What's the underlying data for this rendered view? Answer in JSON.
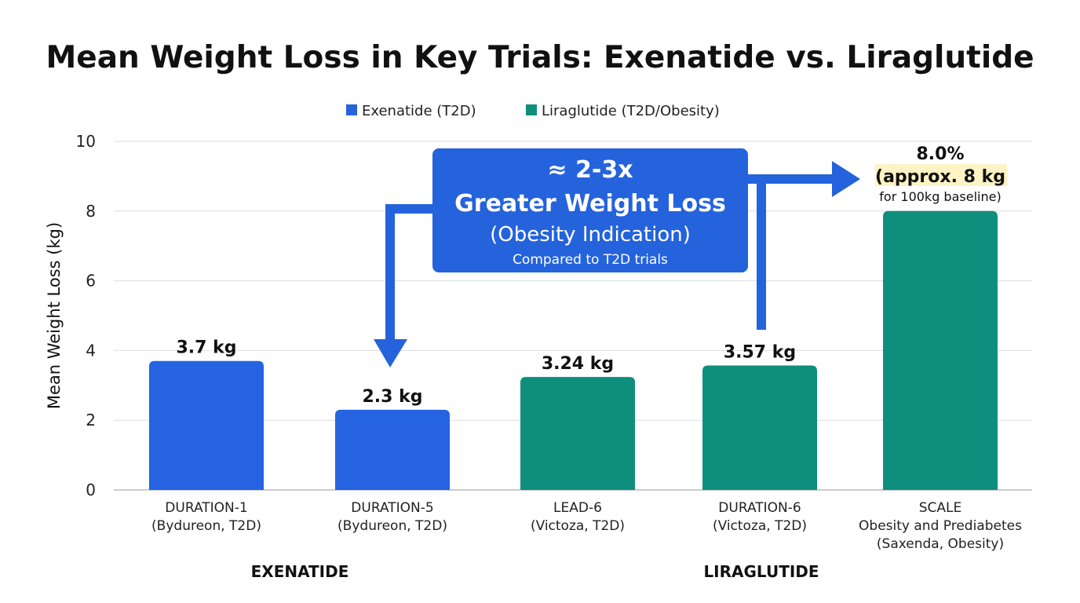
{
  "chart_data": {
    "type": "bar",
    "title": "Mean Weight Loss in Key Trials: Exenatide vs. Liraglutide",
    "ylabel": "Mean Weight Loss (kg)",
    "xlabel": "",
    "ylim": [
      0,
      10
    ],
    "yticks": [
      0,
      2,
      4,
      6,
      8,
      10
    ],
    "grid": true,
    "legend_position": "top-center",
    "legend": [
      {
        "name": "Exenatide (T2D)",
        "color": "#2563e0"
      },
      {
        "name": "Liraglutide (T2D/Obesity)",
        "color": "#0e8f7d"
      }
    ],
    "categories": [
      {
        "lines": [
          "DURATION-1",
          "(Bydureon, T2D)"
        ],
        "value": 3.7,
        "label": "3.7 kg",
        "series": 0
      },
      {
        "lines": [
          "DURATION-5",
          "(Bydureon, T2D)"
        ],
        "value": 2.3,
        "label": "2.3 kg",
        "series": 0
      },
      {
        "lines": [
          "LEAD-6",
          "(Victoza, T2D)"
        ],
        "value": 3.24,
        "label": "3.24 kg",
        "series": 1
      },
      {
        "lines": [
          "DURATION-6",
          "(Victoza, T2D)"
        ],
        "value": 3.57,
        "label": "3.57 kg",
        "series": 1
      },
      {
        "lines": [
          "SCALE",
          "Obesity and Prediabetes",
          "(Saxenda, Obesity)"
        ],
        "value": 8.0,
        "label": "",
        "series": 1
      }
    ],
    "groups": [
      "EXENATIDE",
      "LIRAGLUTIDE"
    ],
    "annotations": {
      "callout": [
        "≈ 2-3x",
        "Greater Weight Loss",
        "(Obesity Indication)",
        "Compared to T2D trials"
      ],
      "scale_label": [
        "8.0%",
        "(approx. 8 kg",
        "for 100kg baseline)"
      ]
    },
    "colors": {
      "callout": "#2563dc",
      "highlight": "#fdf3c4"
    }
  }
}
